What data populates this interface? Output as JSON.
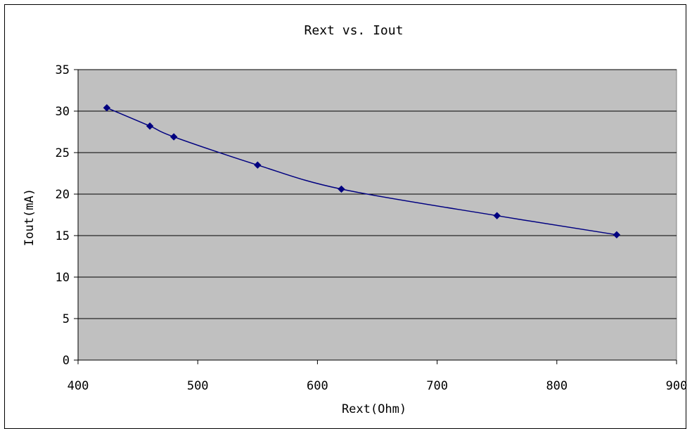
{
  "chart_data": {
    "type": "scatter",
    "title": "Rext vs. Iout",
    "xlabel": "Rext(Ohm)",
    "ylabel": "Iout(mA)",
    "xlim": [
      400,
      900
    ],
    "ylim": [
      0,
      35
    ],
    "xticks": [
      400,
      500,
      600,
      700,
      800,
      900
    ],
    "yticks": [
      0,
      5,
      10,
      15,
      20,
      25,
      30,
      35
    ],
    "grid": true,
    "legend": "none",
    "series": [
      {
        "x": [
          424,
          460,
          480,
          550,
          620,
          750,
          850
        ],
        "y": [
          30.4,
          28.2,
          26.9,
          23.5,
          20.6,
          17.4,
          15.1
        ],
        "line": "smoothed",
        "marker": "diamond",
        "color": "#000080"
      }
    ],
    "plot_background": "#c0c0c0"
  }
}
